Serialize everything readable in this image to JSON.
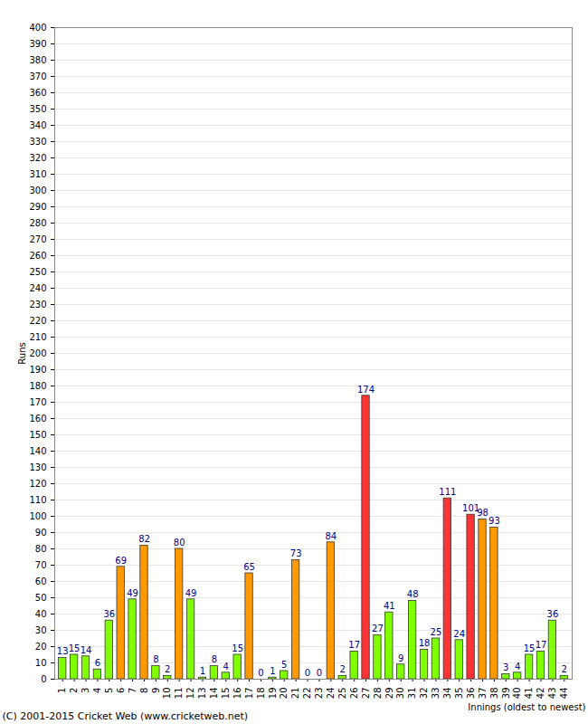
{
  "chart_data": {
    "type": "bar",
    "x_label": "Innings (oldest to newest)",
    "y_label": "Runs",
    "caption": "(C) 2001-2015 Cricket Web (www.cricketweb.net)",
    "categories": [
      "1",
      "2",
      "3",
      "4",
      "5",
      "6",
      "7",
      "8",
      "9",
      "10",
      "11",
      "12",
      "13",
      "14",
      "15",
      "16",
      "17",
      "18",
      "19",
      "20",
      "21",
      "22",
      "23",
      "24",
      "25",
      "26",
      "27",
      "28",
      "29",
      "30",
      "31",
      "32",
      "33",
      "34",
      "35",
      "36",
      "37",
      "38",
      "39",
      "40",
      "41",
      "42",
      "43",
      "44"
    ],
    "values": [
      13,
      15,
      14,
      6,
      36,
      69,
      49,
      82,
      8,
      2,
      80,
      49,
      1,
      8,
      4,
      15,
      65,
      0,
      1,
      5,
      73,
      0,
      0,
      84,
      2,
      17,
      174,
      27,
      41,
      9,
      48,
      18,
      25,
      111,
      24,
      101,
      98,
      93,
      3,
      4,
      15,
      17,
      36,
      2
    ],
    "colors": [
      "#80ff00",
      "#80ff00",
      "#80ff00",
      "#80ff00",
      "#80ff00",
      "#ff9900",
      "#80ff00",
      "#ff9900",
      "#80ff00",
      "#80ff00",
      "#ff9900",
      "#80ff00",
      "#80ff00",
      "#80ff00",
      "#80ff00",
      "#80ff00",
      "#ff9900",
      "#80ff00",
      "#80ff00",
      "#80ff00",
      "#ff9900",
      "#80ff00",
      "#80ff00",
      "#ff9900",
      "#80ff00",
      "#80ff00",
      "#ff3333",
      "#80ff00",
      "#80ff00",
      "#80ff00",
      "#80ff00",
      "#80ff00",
      "#80ff00",
      "#ff3333",
      "#80ff00",
      "#ff3333",
      "#ff9900",
      "#ff9900",
      "#80ff00",
      "#80ff00",
      "#80ff00",
      "#80ff00",
      "#80ff00",
      "#80ff00"
    ],
    "ylim": [
      0,
      400
    ],
    "yticks": [
      0,
      10,
      20,
      30,
      40,
      50,
      60,
      70,
      80,
      90,
      100,
      110,
      120,
      130,
      140,
      150,
      160,
      170,
      180,
      190,
      200,
      210,
      220,
      230,
      240,
      250,
      260,
      270,
      280,
      290,
      300,
      310,
      320,
      330,
      340,
      350,
      360,
      370,
      380,
      390,
      400
    ],
    "grid": true,
    "data_labels": true
  }
}
